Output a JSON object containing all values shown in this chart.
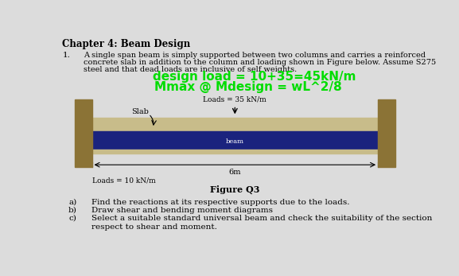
{
  "title": "Chapter 4: Beam Design",
  "bg_color": "#dcdcdc",
  "text_color": "#000000",
  "para_number": "1.",
  "paragraph_line1": "A single span beam is simply supported between two columns and carries a reinforced",
  "paragraph_line2": "concrete slab in addition to the column and loading shown in Figure below. Assume S275",
  "paragraph_line3": "steel and that dead loads are inclusive of self weights.",
  "green_line1": "design load = 10+35=45kN/m",
  "green_line2": "Mmax @ Mdesign = wL^2/8",
  "slab_label": "Slab",
  "beam_label": "beam",
  "span_label": "6m",
  "loads_top": "Loads = 35 kN/m",
  "loads_bottom": "Loads = 10 kN/m",
  "figure_label": "Figure Q3",
  "items": [
    "Find the reactions at its respective supports due to the loads.",
    "Draw shear and bending moment diagrams",
    "Select a suitable standard universal beam and check the suitability of the section\nrespect to shear and moment."
  ],
  "item_labels": [
    "a)",
    "b)",
    "c)"
  ],
  "column_color": "#8B7336",
  "slab_color": "#c8bc8a",
  "beam_color": "#1a237e",
  "beam_bottom_color": "#c8bc8a"
}
